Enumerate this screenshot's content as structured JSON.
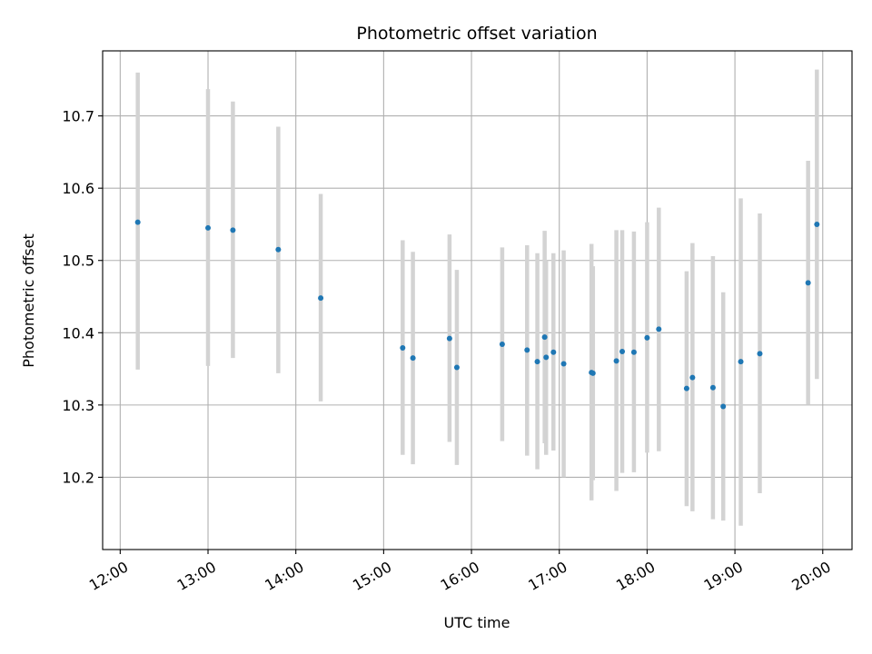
{
  "chart_data": {
    "type": "scatter",
    "title": "Photometric offset variation",
    "xlabel": "UTC time",
    "ylabel": "Photometric offset",
    "xlim": [
      "11:48",
      "20:20"
    ],
    "ylim": [
      10.1,
      10.79
    ],
    "x_ticks": [
      "12:00",
      "13:00",
      "14:00",
      "15:00",
      "16:00",
      "17:00",
      "18:00",
      "19:00",
      "20:00"
    ],
    "y_ticks": [
      10.2,
      10.3,
      10.4,
      10.5,
      10.6,
      10.7
    ],
    "grid": true,
    "colors": {
      "point": "#1f77b4",
      "errorbar": "#d3d3d3",
      "grid": "#b0b0b0"
    },
    "series": [
      {
        "points": [
          {
            "x": "12:12",
            "y": 10.553,
            "low": 10.349,
            "high": 10.76
          },
          {
            "x": "13:00",
            "y": 10.545,
            "low": 10.354,
            "high": 10.737
          },
          {
            "x": "13:17",
            "y": 10.542,
            "low": 10.365,
            "high": 10.72
          },
          {
            "x": "13:48",
            "y": 10.515,
            "low": 10.344,
            "high": 10.685
          },
          {
            "x": "14:17",
            "y": 10.448,
            "low": 10.305,
            "high": 10.592
          },
          {
            "x": "15:13",
            "y": 10.379,
            "low": 10.231,
            "high": 10.528
          },
          {
            "x": "15:20",
            "y": 10.365,
            "low": 10.218,
            "high": 10.512
          },
          {
            "x": "15:45",
            "y": 10.392,
            "low": 10.249,
            "high": 10.536
          },
          {
            "x": "15:50",
            "y": 10.352,
            "low": 10.217,
            "high": 10.487
          },
          {
            "x": "16:21",
            "y": 10.384,
            "low": 10.25,
            "high": 10.518
          },
          {
            "x": "16:38",
            "y": 10.376,
            "low": 10.23,
            "high": 10.521
          },
          {
            "x": "16:45",
            "y": 10.36,
            "low": 10.211,
            "high": 10.51
          },
          {
            "x": "16:50",
            "y": 10.394,
            "low": 10.247,
            "high": 10.541
          },
          {
            "x": "16:51",
            "y": 10.366,
            "low": 10.231,
            "high": 10.5
          },
          {
            "x": "16:56",
            "y": 10.373,
            "low": 10.237,
            "high": 10.51
          },
          {
            "x": "17:03",
            "y": 10.357,
            "low": 10.2,
            "high": 10.514
          },
          {
            "x": "17:22",
            "y": 10.345,
            "low": 10.168,
            "high": 10.523
          },
          {
            "x": "17:23",
            "y": 10.344,
            "low": 10.196,
            "high": 10.492
          },
          {
            "x": "17:39",
            "y": 10.361,
            "low": 10.181,
            "high": 10.542
          },
          {
            "x": "17:43",
            "y": 10.374,
            "low": 10.206,
            "high": 10.542
          },
          {
            "x": "17:51",
            "y": 10.373,
            "low": 10.207,
            "high": 10.54
          },
          {
            "x": "18:00",
            "y": 10.393,
            "low": 10.234,
            "high": 10.553
          },
          {
            "x": "18:08",
            "y": 10.405,
            "low": 10.236,
            "high": 10.573
          },
          {
            "x": "18:27",
            "y": 10.323,
            "low": 10.16,
            "high": 10.485
          },
          {
            "x": "18:31",
            "y": 10.338,
            "low": 10.153,
            "high": 10.524
          },
          {
            "x": "18:45",
            "y": 10.324,
            "low": 10.142,
            "high": 10.506
          },
          {
            "x": "18:52",
            "y": 10.298,
            "low": 10.14,
            "high": 10.456
          },
          {
            "x": "19:04",
            "y": 10.36,
            "low": 10.133,
            "high": 10.586
          },
          {
            "x": "19:17",
            "y": 10.371,
            "low": 10.178,
            "high": 10.565
          },
          {
            "x": "19:50",
            "y": 10.469,
            "low": 10.301,
            "high": 10.638
          },
          {
            "x": "19:56",
            "y": 10.55,
            "low": 10.336,
            "high": 10.764
          }
        ]
      }
    ]
  }
}
